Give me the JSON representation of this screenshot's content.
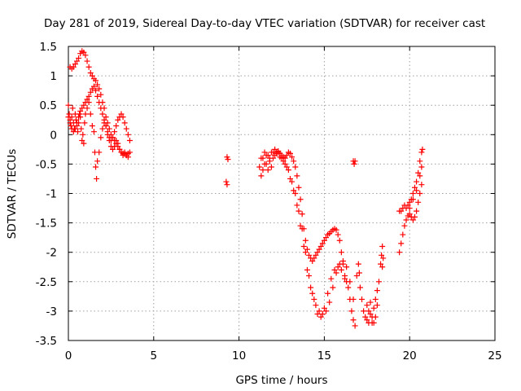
{
  "chart_data": {
    "type": "scatter",
    "title": "Day 281 of 2019, Sidereal Day-to-day VTEC variation (SDTVAR) for receiver cast",
    "xlabel": "GPS time / hours",
    "ylabel": "SDTVAR / TECUs",
    "xlim": [
      0,
      25
    ],
    "ylim": [
      -3.5,
      1.5
    ],
    "xticks": [
      0,
      5,
      10,
      15,
      20,
      25
    ],
    "yticks": [
      -3.5,
      -3,
      -2.5,
      -2,
      -1.5,
      -1,
      -0.5,
      0,
      0.5,
      1,
      1.5
    ],
    "xtick_labels": [
      "0",
      "5",
      "10",
      "15",
      "20",
      "25"
    ],
    "ytick_labels": [
      "-3.5",
      "-3",
      "-2.5",
      "-2",
      "-1.5",
      "-1",
      "-0.5",
      "0",
      "0.5",
      "1",
      "1.5"
    ],
    "grid": true,
    "marker": "+",
    "color": "#ff0000",
    "series": [
      {
        "name": "SDTVAR",
        "points": [
          [
            0.0,
            0.5
          ],
          [
            0.05,
            0.35
          ],
          [
            0.1,
            0.25
          ],
          [
            0.15,
            0.15
          ],
          [
            0.2,
            0.3
          ],
          [
            0.25,
            0.45
          ],
          [
            0.3,
            0.2
          ],
          [
            0.35,
            0.1
          ],
          [
            0.4,
            0.35
          ],
          [
            0.45,
            0.25
          ],
          [
            0.5,
            0.15
          ],
          [
            0.55,
            0.05
          ],
          [
            0.6,
            0.2
          ],
          [
            0.65,
            0.35
          ],
          [
            0.7,
            0.3
          ],
          [
            0.75,
            0.1
          ],
          [
            0.8,
            -0.1
          ],
          [
            0.85,
            0.0
          ],
          [
            0.9,
            -0.15
          ],
          [
            0.95,
            0.2
          ],
          [
            1.0,
            0.35
          ],
          [
            1.1,
            0.45
          ],
          [
            1.2,
            0.55
          ],
          [
            1.3,
            0.35
          ],
          [
            1.4,
            0.15
          ],
          [
            1.5,
            0.05
          ],
          [
            1.55,
            -0.3
          ],
          [
            1.6,
            -0.55
          ],
          [
            1.65,
            -0.75
          ],
          [
            1.7,
            -0.45
          ],
          [
            1.8,
            -0.3
          ],
          [
            1.9,
            -0.05
          ],
          [
            2.0,
            0.1
          ],
          [
            2.1,
            0.2
          ],
          [
            2.2,
            0.15
          ],
          [
            2.3,
            0.0
          ],
          [
            2.4,
            -0.1
          ],
          [
            2.5,
            -0.2
          ],
          [
            2.6,
            -0.25
          ],
          [
            2.7,
            -0.2
          ],
          [
            2.8,
            -0.1
          ],
          [
            2.9,
            -0.15
          ],
          [
            3.0,
            -0.25
          ],
          [
            3.1,
            -0.3
          ],
          [
            3.2,
            -0.35
          ],
          [
            3.3,
            -0.3
          ],
          [
            3.4,
            -0.35
          ],
          [
            3.5,
            -0.38
          ],
          [
            3.6,
            -0.3
          ],
          [
            0.1,
            1.15
          ],
          [
            0.2,
            1.12
          ],
          [
            0.3,
            1.15
          ],
          [
            0.4,
            1.2
          ],
          [
            0.5,
            1.25
          ],
          [
            0.6,
            1.3
          ],
          [
            0.7,
            1.38
          ],
          [
            0.8,
            1.42
          ],
          [
            0.9,
            1.4
          ],
          [
            1.0,
            1.35
          ],
          [
            1.1,
            1.25
          ],
          [
            1.2,
            1.15
          ],
          [
            1.3,
            1.05
          ],
          [
            1.4,
            1.0
          ],
          [
            1.5,
            0.95
          ],
          [
            1.6,
            0.92
          ],
          [
            1.7,
            0.85
          ],
          [
            1.8,
            0.78
          ],
          [
            1.9,
            0.68
          ],
          [
            2.0,
            0.55
          ],
          [
            2.1,
            0.45
          ],
          [
            2.2,
            0.3
          ],
          [
            2.3,
            0.2
          ],
          [
            2.4,
            0.1
          ],
          [
            2.5,
            0.0
          ],
          [
            2.6,
            -0.05
          ],
          [
            2.7,
            -0.1
          ],
          [
            2.8,
            -0.15
          ],
          [
            2.9,
            -0.2
          ],
          [
            3.0,
            -0.25
          ],
          [
            3.1,
            -0.3
          ],
          [
            3.2,
            -0.32
          ],
          [
            3.3,
            -0.33
          ],
          [
            3.4,
            -0.35
          ],
          [
            3.5,
            -0.32
          ],
          [
            0.0,
            0.3
          ],
          [
            0.1,
            0.2
          ],
          [
            0.2,
            0.1
          ],
          [
            0.3,
            0.05
          ],
          [
            0.4,
            0.1
          ],
          [
            0.5,
            0.2
          ],
          [
            0.6,
            0.3
          ],
          [
            0.7,
            0.4
          ],
          [
            0.8,
            0.45
          ],
          [
            0.9,
            0.5
          ],
          [
            1.0,
            0.55
          ],
          [
            1.1,
            0.6
          ],
          [
            1.2,
            0.65
          ],
          [
            1.3,
            0.72
          ],
          [
            1.4,
            0.78
          ],
          [
            1.5,
            0.82
          ],
          [
            1.6,
            0.75
          ],
          [
            1.7,
            0.65
          ],
          [
            1.8,
            0.55
          ],
          [
            1.9,
            0.45
          ],
          [
            2.0,
            0.35
          ],
          [
            2.1,
            0.25
          ],
          [
            2.2,
            0.15
          ],
          [
            2.3,
            0.05
          ],
          [
            2.4,
            -0.05
          ],
          [
            2.5,
            -0.1
          ],
          [
            2.6,
            -0.05
          ],
          [
            2.7,
            0.05
          ],
          [
            2.8,
            0.15
          ],
          [
            2.9,
            0.25
          ],
          [
            3.0,
            0.3
          ],
          [
            3.1,
            0.35
          ],
          [
            3.2,
            0.3
          ],
          [
            3.3,
            0.2
          ],
          [
            3.4,
            0.1
          ],
          [
            3.5,
            0.0
          ],
          [
            3.6,
            -0.1
          ],
          [
            9.3,
            -0.38
          ],
          [
            9.35,
            -0.42
          ],
          [
            9.25,
            -0.8
          ],
          [
            9.3,
            -0.85
          ],
          [
            11.2,
            -0.55
          ],
          [
            11.3,
            -0.7
          ],
          [
            11.4,
            -0.4
          ],
          [
            11.5,
            -0.3
          ],
          [
            11.6,
            -0.5
          ],
          [
            11.7,
            -0.6
          ],
          [
            11.8,
            -0.45
          ],
          [
            11.9,
            -0.55
          ],
          [
            12.0,
            -0.4
          ],
          [
            12.1,
            -0.35
          ],
          [
            12.2,
            -0.3
          ],
          [
            12.3,
            -0.28
          ],
          [
            12.4,
            -0.32
          ],
          [
            12.5,
            -0.35
          ],
          [
            12.6,
            -0.38
          ],
          [
            12.7,
            -0.4
          ],
          [
            12.8,
            -0.35
          ],
          [
            12.9,
            -0.3
          ],
          [
            13.0,
            -0.32
          ],
          [
            13.1,
            -0.38
          ],
          [
            13.2,
            -0.45
          ],
          [
            13.3,
            -0.55
          ],
          [
            13.4,
            -0.7
          ],
          [
            13.5,
            -0.9
          ],
          [
            13.6,
            -1.1
          ],
          [
            13.7,
            -1.35
          ],
          [
            13.8,
            -1.6
          ],
          [
            13.9,
            -1.8
          ],
          [
            14.0,
            -1.95
          ],
          [
            14.1,
            -2.05
          ],
          [
            14.2,
            -2.1
          ],
          [
            14.3,
            -2.15
          ],
          [
            14.4,
            -2.1
          ],
          [
            14.5,
            -2.05
          ],
          [
            14.6,
            -2.0
          ],
          [
            14.7,
            -1.95
          ],
          [
            14.8,
            -1.9
          ],
          [
            14.9,
            -1.85
          ],
          [
            15.0,
            -1.8
          ],
          [
            15.1,
            -1.75
          ],
          [
            15.2,
            -1.7
          ],
          [
            15.3,
            -1.68
          ],
          [
            15.4,
            -1.65
          ],
          [
            15.5,
            -1.62
          ],
          [
            15.6,
            -1.6
          ],
          [
            15.7,
            -1.62
          ],
          [
            15.8,
            -1.7
          ],
          [
            15.9,
            -1.8
          ],
          [
            16.0,
            -2.0
          ],
          [
            16.1,
            -2.2
          ],
          [
            16.2,
            -2.4
          ],
          [
            16.3,
            -2.5
          ],
          [
            16.4,
            -2.6
          ],
          [
            16.5,
            -2.8
          ],
          [
            16.6,
            -3.0
          ],
          [
            16.7,
            -3.15
          ],
          [
            16.8,
            -3.25
          ],
          [
            11.3,
            -0.4
          ],
          [
            11.5,
            -0.5
          ],
          [
            11.7,
            -0.35
          ],
          [
            11.9,
            -0.3
          ],
          [
            12.1,
            -0.25
          ],
          [
            12.3,
            -0.3
          ],
          [
            12.5,
            -0.4
          ],
          [
            12.7,
            -0.5
          ],
          [
            12.9,
            -0.6
          ],
          [
            13.1,
            -0.8
          ],
          [
            13.3,
            -1.0
          ],
          [
            13.5,
            -1.3
          ],
          [
            13.7,
            -1.6
          ],
          [
            13.9,
            -2.0
          ],
          [
            14.1,
            -2.4
          ],
          [
            14.3,
            -2.7
          ],
          [
            14.5,
            -2.9
          ],
          [
            14.7,
            -3.0
          ],
          [
            14.9,
            -3.05
          ],
          [
            15.1,
            -3.0
          ],
          [
            15.3,
            -2.85
          ],
          [
            15.5,
            -2.6
          ],
          [
            15.7,
            -2.35
          ],
          [
            15.9,
            -2.2
          ],
          [
            16.1,
            -2.15
          ],
          [
            16.3,
            -2.25
          ],
          [
            16.5,
            -2.5
          ],
          [
            16.7,
            -2.8
          ],
          [
            11.4,
            -0.6
          ],
          [
            11.6,
            -0.35
          ],
          [
            11.8,
            -0.4
          ],
          [
            12.0,
            -0.3
          ],
          [
            12.2,
            -0.32
          ],
          [
            12.4,
            -0.38
          ],
          [
            12.6,
            -0.45
          ],
          [
            12.8,
            -0.55
          ],
          [
            13.0,
            -0.75
          ],
          [
            13.2,
            -0.95
          ],
          [
            13.4,
            -1.2
          ],
          [
            13.6,
            -1.55
          ],
          [
            13.8,
            -1.9
          ],
          [
            14.0,
            -2.3
          ],
          [
            14.2,
            -2.6
          ],
          [
            14.4,
            -2.8
          ],
          [
            14.6,
            -3.05
          ],
          [
            14.8,
            -3.1
          ],
          [
            15.0,
            -2.95
          ],
          [
            15.2,
            -2.7
          ],
          [
            15.4,
            -2.45
          ],
          [
            15.6,
            -2.3
          ],
          [
            15.8,
            -2.25
          ],
          [
            16.0,
            -2.3
          ],
          [
            16.2,
            -2.45
          ],
          [
            16.7,
            -0.45
          ],
          [
            16.75,
            -0.5
          ],
          [
            16.8,
            -0.45
          ],
          [
            16.9,
            -2.4
          ],
          [
            17.0,
            -2.2
          ],
          [
            17.05,
            -2.35
          ],
          [
            17.1,
            -2.6
          ],
          [
            17.2,
            -2.8
          ],
          [
            17.3,
            -3.0
          ],
          [
            17.4,
            -3.1
          ],
          [
            17.5,
            -3.15
          ],
          [
            17.6,
            -3.0
          ],
          [
            17.7,
            -3.05
          ],
          [
            17.8,
            -3.1
          ],
          [
            17.9,
            -2.95
          ],
          [
            18.0,
            -2.8
          ],
          [
            18.1,
            -2.65
          ],
          [
            18.2,
            -2.5
          ],
          [
            17.5,
            -2.9
          ],
          [
            17.6,
            -3.2
          ],
          [
            17.8,
            -3.2
          ],
          [
            17.9,
            -3.2
          ],
          [
            18.0,
            -3.1
          ],
          [
            17.7,
            -2.85
          ],
          [
            18.1,
            -2.9
          ],
          [
            18.3,
            -2.2
          ],
          [
            18.35,
            -2.05
          ],
          [
            18.4,
            -1.9
          ],
          [
            18.45,
            -2.1
          ],
          [
            18.4,
            -2.25
          ],
          [
            19.4,
            -2.0
          ],
          [
            19.5,
            -1.85
          ],
          [
            19.6,
            -1.7
          ],
          [
            19.7,
            -1.55
          ],
          [
            19.8,
            -1.45
          ],
          [
            19.9,
            -1.38
          ],
          [
            20.0,
            -1.35
          ],
          [
            20.1,
            -1.4
          ],
          [
            20.2,
            -1.45
          ],
          [
            20.3,
            -1.4
          ],
          [
            20.4,
            -1.3
          ],
          [
            20.5,
            -1.15
          ],
          [
            20.6,
            -1.0
          ],
          [
            20.7,
            -0.85
          ],
          [
            19.4,
            -1.3
          ],
          [
            19.5,
            -1.3
          ],
          [
            19.6,
            -1.25
          ],
          [
            19.7,
            -1.2
          ],
          [
            19.8,
            -1.25
          ],
          [
            19.9,
            -1.2
          ],
          [
            20.0,
            -1.15
          ],
          [
            20.1,
            -1.1
          ],
          [
            20.2,
            -1.0
          ],
          [
            20.3,
            -0.9
          ],
          [
            20.4,
            -0.8
          ],
          [
            20.5,
            -0.65
          ],
          [
            20.6,
            -0.45
          ],
          [
            20.7,
            -0.3
          ],
          [
            20.75,
            -0.25
          ],
          [
            20.0,
            -1.25
          ],
          [
            20.2,
            -1.1
          ],
          [
            20.4,
            -0.95
          ],
          [
            20.6,
            -0.7
          ],
          [
            20.7,
            -0.55
          ]
        ]
      }
    ]
  }
}
